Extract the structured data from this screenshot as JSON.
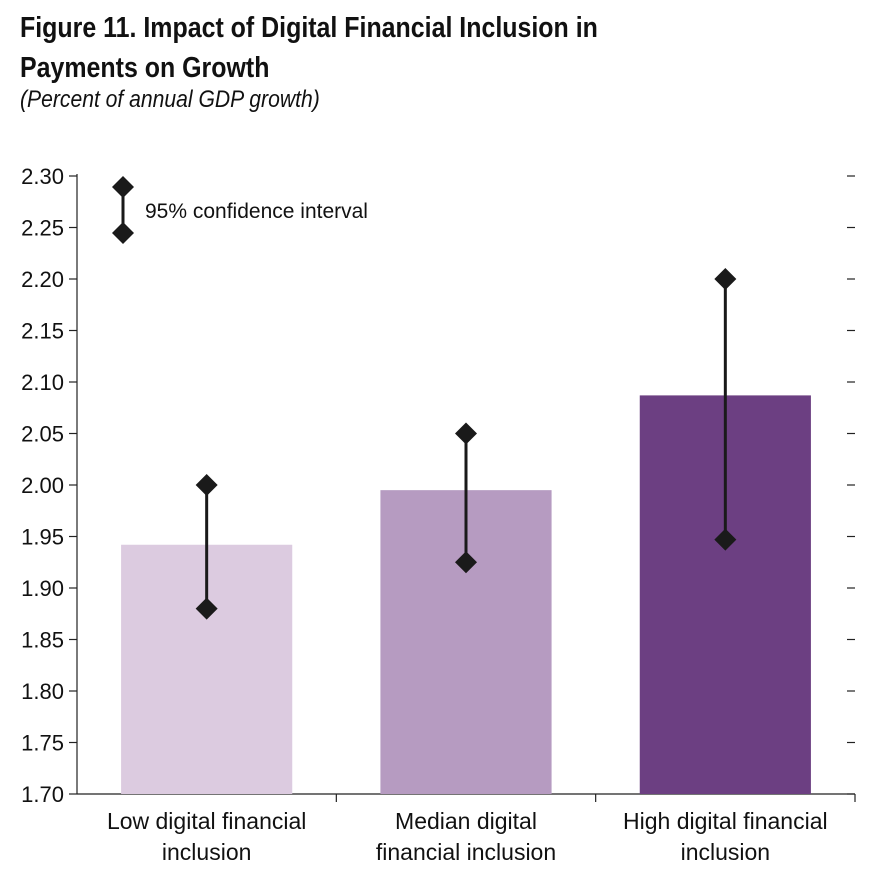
{
  "title_line1": "Figure 11. Impact of Digital Financial Inclusion in",
  "title_line2": "Payments on Growth",
  "subtitle": "(Percent of annual GDP growth)",
  "legend_label": "95% confidence interval",
  "colors": {
    "low": "#dccbe0",
    "median": "#b69bc1",
    "high": "#6c3f82",
    "error": "#1a1a1a"
  },
  "chart_data": {
    "type": "bar",
    "categories": [
      [
        "Low digital financial",
        "inclusion"
      ],
      [
        "Median digital",
        "financial inclusion"
      ],
      [
        "High digital financial",
        "inclusion"
      ]
    ],
    "values": [
      1.942,
      1.995,
      2.087
    ],
    "ci_upper": [
      2.0,
      2.05,
      2.2
    ],
    "ci_lower": [
      1.88,
      1.925,
      1.947
    ],
    "ylim": [
      1.7,
      2.3
    ],
    "yticks": [
      "1.70",
      "1.75",
      "1.80",
      "1.85",
      "1.90",
      "1.95",
      "2.00",
      "2.05",
      "2.10",
      "2.15",
      "2.20",
      "2.25",
      "2.30"
    ],
    "legend_position": "top-left",
    "grid": false
  }
}
